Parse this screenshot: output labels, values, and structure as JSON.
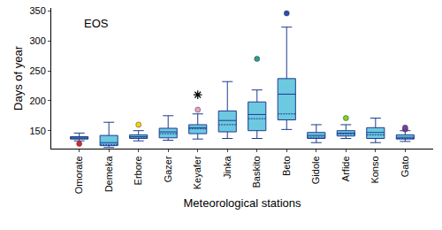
{
  "chart_data": {
    "type": "box",
    "title": "EOS",
    "x_label": "Meteorological stations",
    "y_label": "Days of year",
    "color": "#6cc9e0",
    "grid": false,
    "categories": [
      "Omorate",
      "Demeka",
      "Erbore",
      "Gazer",
      "Keyafer",
      "Jinka",
      "Baskito",
      "Beto",
      "Gidole",
      "Arfide",
      "Konso",
      "Gato"
    ],
    "boxes": [
      {
        "lower": 133,
        "q1": 136,
        "median": 138,
        "q3": 140,
        "upper": 146,
        "mean": 137,
        "outliers": [
          {
            "value": 128,
            "color": "#d62728",
            "marker": "circle"
          }
        ]
      },
      {
        "lower": 122,
        "q1": 125,
        "median": 130,
        "q3": 142,
        "upper": 164,
        "mean": 127,
        "outliers": []
      },
      {
        "lower": 133,
        "q1": 137,
        "median": 140,
        "q3": 143,
        "upper": 150,
        "mean": 139,
        "outliers": [
          {
            "value": 160,
            "color": "#f5d60a",
            "marker": "circle"
          }
        ]
      },
      {
        "lower": 134,
        "q1": 138,
        "median": 148,
        "q3": 154,
        "upper": 175,
        "mean": 145,
        "outliers": []
      },
      {
        "lower": 136,
        "q1": 145,
        "median": 155,
        "q3": 160,
        "upper": 178,
        "mean": 153,
        "outliers": [
          {
            "value": 185,
            "color": "#e8a0c8",
            "marker": "circle"
          },
          {
            "value": 210,
            "color": "#000000",
            "marker": "asterisk"
          }
        ]
      },
      {
        "lower": 137,
        "q1": 148,
        "median": 167,
        "q3": 183,
        "upper": 232,
        "mean": 160,
        "outliers": []
      },
      {
        "lower": 137,
        "q1": 150,
        "median": 177,
        "q3": 198,
        "upper": 218,
        "mean": 170,
        "outliers": [
          {
            "value": 270,
            "color": "#2a9d8f",
            "marker": "circle"
          }
        ]
      },
      {
        "lower": 152,
        "q1": 168,
        "median": 211,
        "q3": 237,
        "upper": 323,
        "mean": 178,
        "outliers": [
          {
            "value": 346,
            "color": "#2b4fb3",
            "marker": "circle"
          }
        ]
      },
      {
        "lower": 130,
        "q1": 137,
        "median": 142,
        "q3": 147,
        "upper": 160,
        "mean": 139,
        "outliers": []
      },
      {
        "lower": 137,
        "q1": 141,
        "median": 146,
        "q3": 150,
        "upper": 160,
        "mean": 144,
        "outliers": [
          {
            "value": 171,
            "color": "#7ed321",
            "marker": "circle"
          }
        ]
      },
      {
        "lower": 130,
        "q1": 137,
        "median": 147,
        "q3": 155,
        "upper": 171,
        "mean": 143,
        "outliers": []
      },
      {
        "lower": 132,
        "q1": 136,
        "median": 139,
        "q3": 143,
        "upper": 150,
        "mean": 137,
        "outliers": [
          {
            "value": 152,
            "color": "#7b3fa0",
            "marker": "circle"
          },
          {
            "value": 155,
            "color": "#7b3fa0",
            "marker": "circle"
          }
        ]
      }
    ],
    "ylim": [
      120,
      355
    ],
    "yticks": [
      150,
      200,
      250,
      300,
      350
    ]
  }
}
